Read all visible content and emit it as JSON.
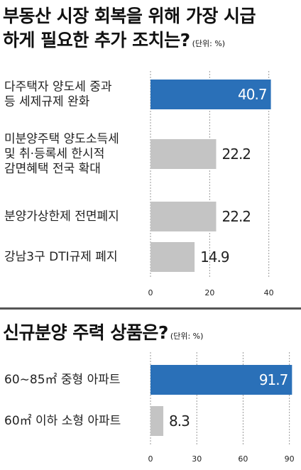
{
  "colors": {
    "highlight": "#2a70b8",
    "bar": "#c4c4c4",
    "grid": "#9a9a9a",
    "text": "#222222",
    "divider": "#555555"
  },
  "chart_data": [
    {
      "type": "bar",
      "orientation": "horizontal",
      "title_lines": [
        "부동산 시장 회복을 위해 가장 시급",
        "하게 필요한 추가 조치는?"
      ],
      "unit": "(단위: %)",
      "categories": [
        [
          "다주택자 양도세 중과",
          "등 세제규제 완화"
        ],
        [
          "미분양주택 양도소득세",
          "및 취·등록세 한시적",
          "감면혜택 전국 확대"
        ],
        [
          "분양가상한제 전면폐지"
        ],
        [
          "강남3구 DTI규제 폐지"
        ]
      ],
      "values": [
        40.7,
        22.2,
        22.2,
        14.9
      ],
      "value_labels": [
        "40.7",
        "22.2",
        "22.2",
        "14.9"
      ],
      "highlight_index": 0,
      "xlim": [
        0,
        48
      ],
      "xticks": [
        0,
        20,
        40
      ],
      "xtick_labels": [
        "0",
        "20",
        "40"
      ],
      "grid": true
    },
    {
      "type": "bar",
      "orientation": "horizontal",
      "title_lines": [
        "신규분양 주력 상품은?"
      ],
      "unit": "(단위: %)",
      "categories": [
        [
          "60∼85㎡ 중형 아파트"
        ],
        [
          "60㎡ 이하 소형 아파트"
        ]
      ],
      "values": [
        91.7,
        8.3
      ],
      "value_labels": [
        "91.7",
        "8.3"
      ],
      "highlight_index": 0,
      "xlim": [
        0,
        92
      ],
      "xticks": [
        0,
        30,
        60,
        90
      ],
      "xtick_labels": [
        "0",
        "30",
        "60",
        "90"
      ],
      "grid": true
    }
  ]
}
